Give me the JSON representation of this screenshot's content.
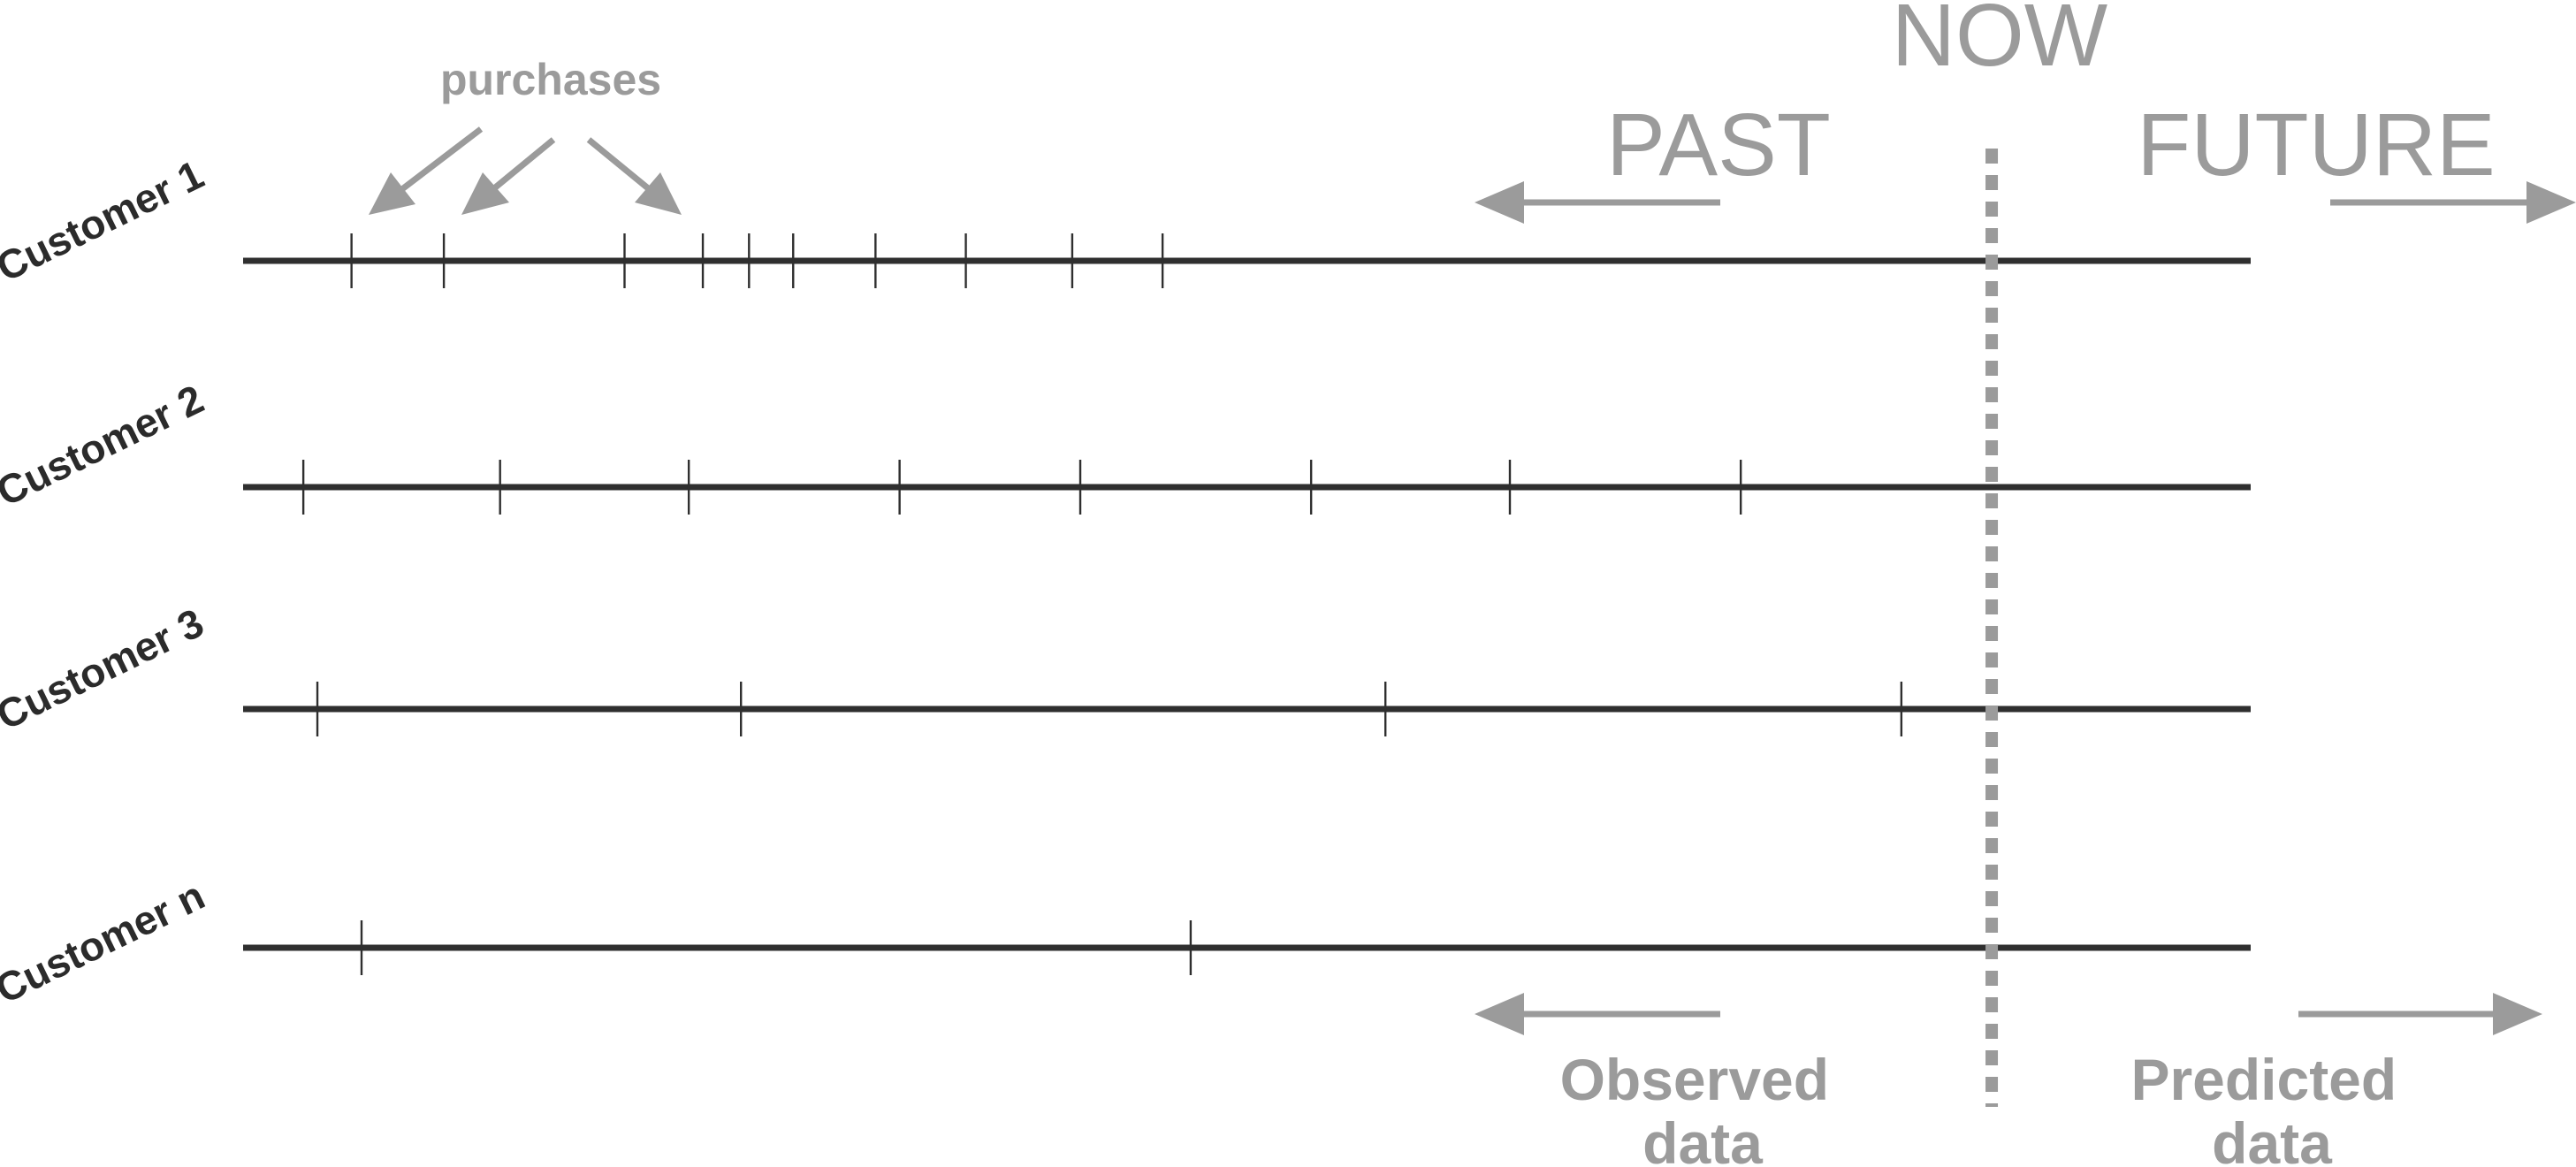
{
  "labels": {
    "now": "NOW",
    "past": "PAST",
    "future": "FUTURE",
    "purchases": "purchases",
    "observed_line1": "Observed",
    "observed_line2": "data",
    "predicted_line1": "Predicted",
    "predicted_line2": "data"
  },
  "customers": [
    {
      "name": "Customer 1",
      "purchases": [
        0.054,
        0.1,
        0.19,
        0.229,
        0.252,
        0.274,
        0.315,
        0.36,
        0.413,
        0.458
      ]
    },
    {
      "name": "Customer 2",
      "purchases": [
        0.03,
        0.128,
        0.222,
        0.327,
        0.417,
        0.532,
        0.631,
        0.746
      ]
    },
    {
      "name": "Customer 3",
      "purchases": [
        0.037,
        0.248,
        0.569,
        0.826
      ]
    },
    {
      "name": "Customer n",
      "purchases": [
        0.059,
        0.472
      ]
    }
  ],
  "now_position": 0.871,
  "colors": {
    "timeline": "#2f2f2f",
    "annotation": "#9b9b9b"
  }
}
